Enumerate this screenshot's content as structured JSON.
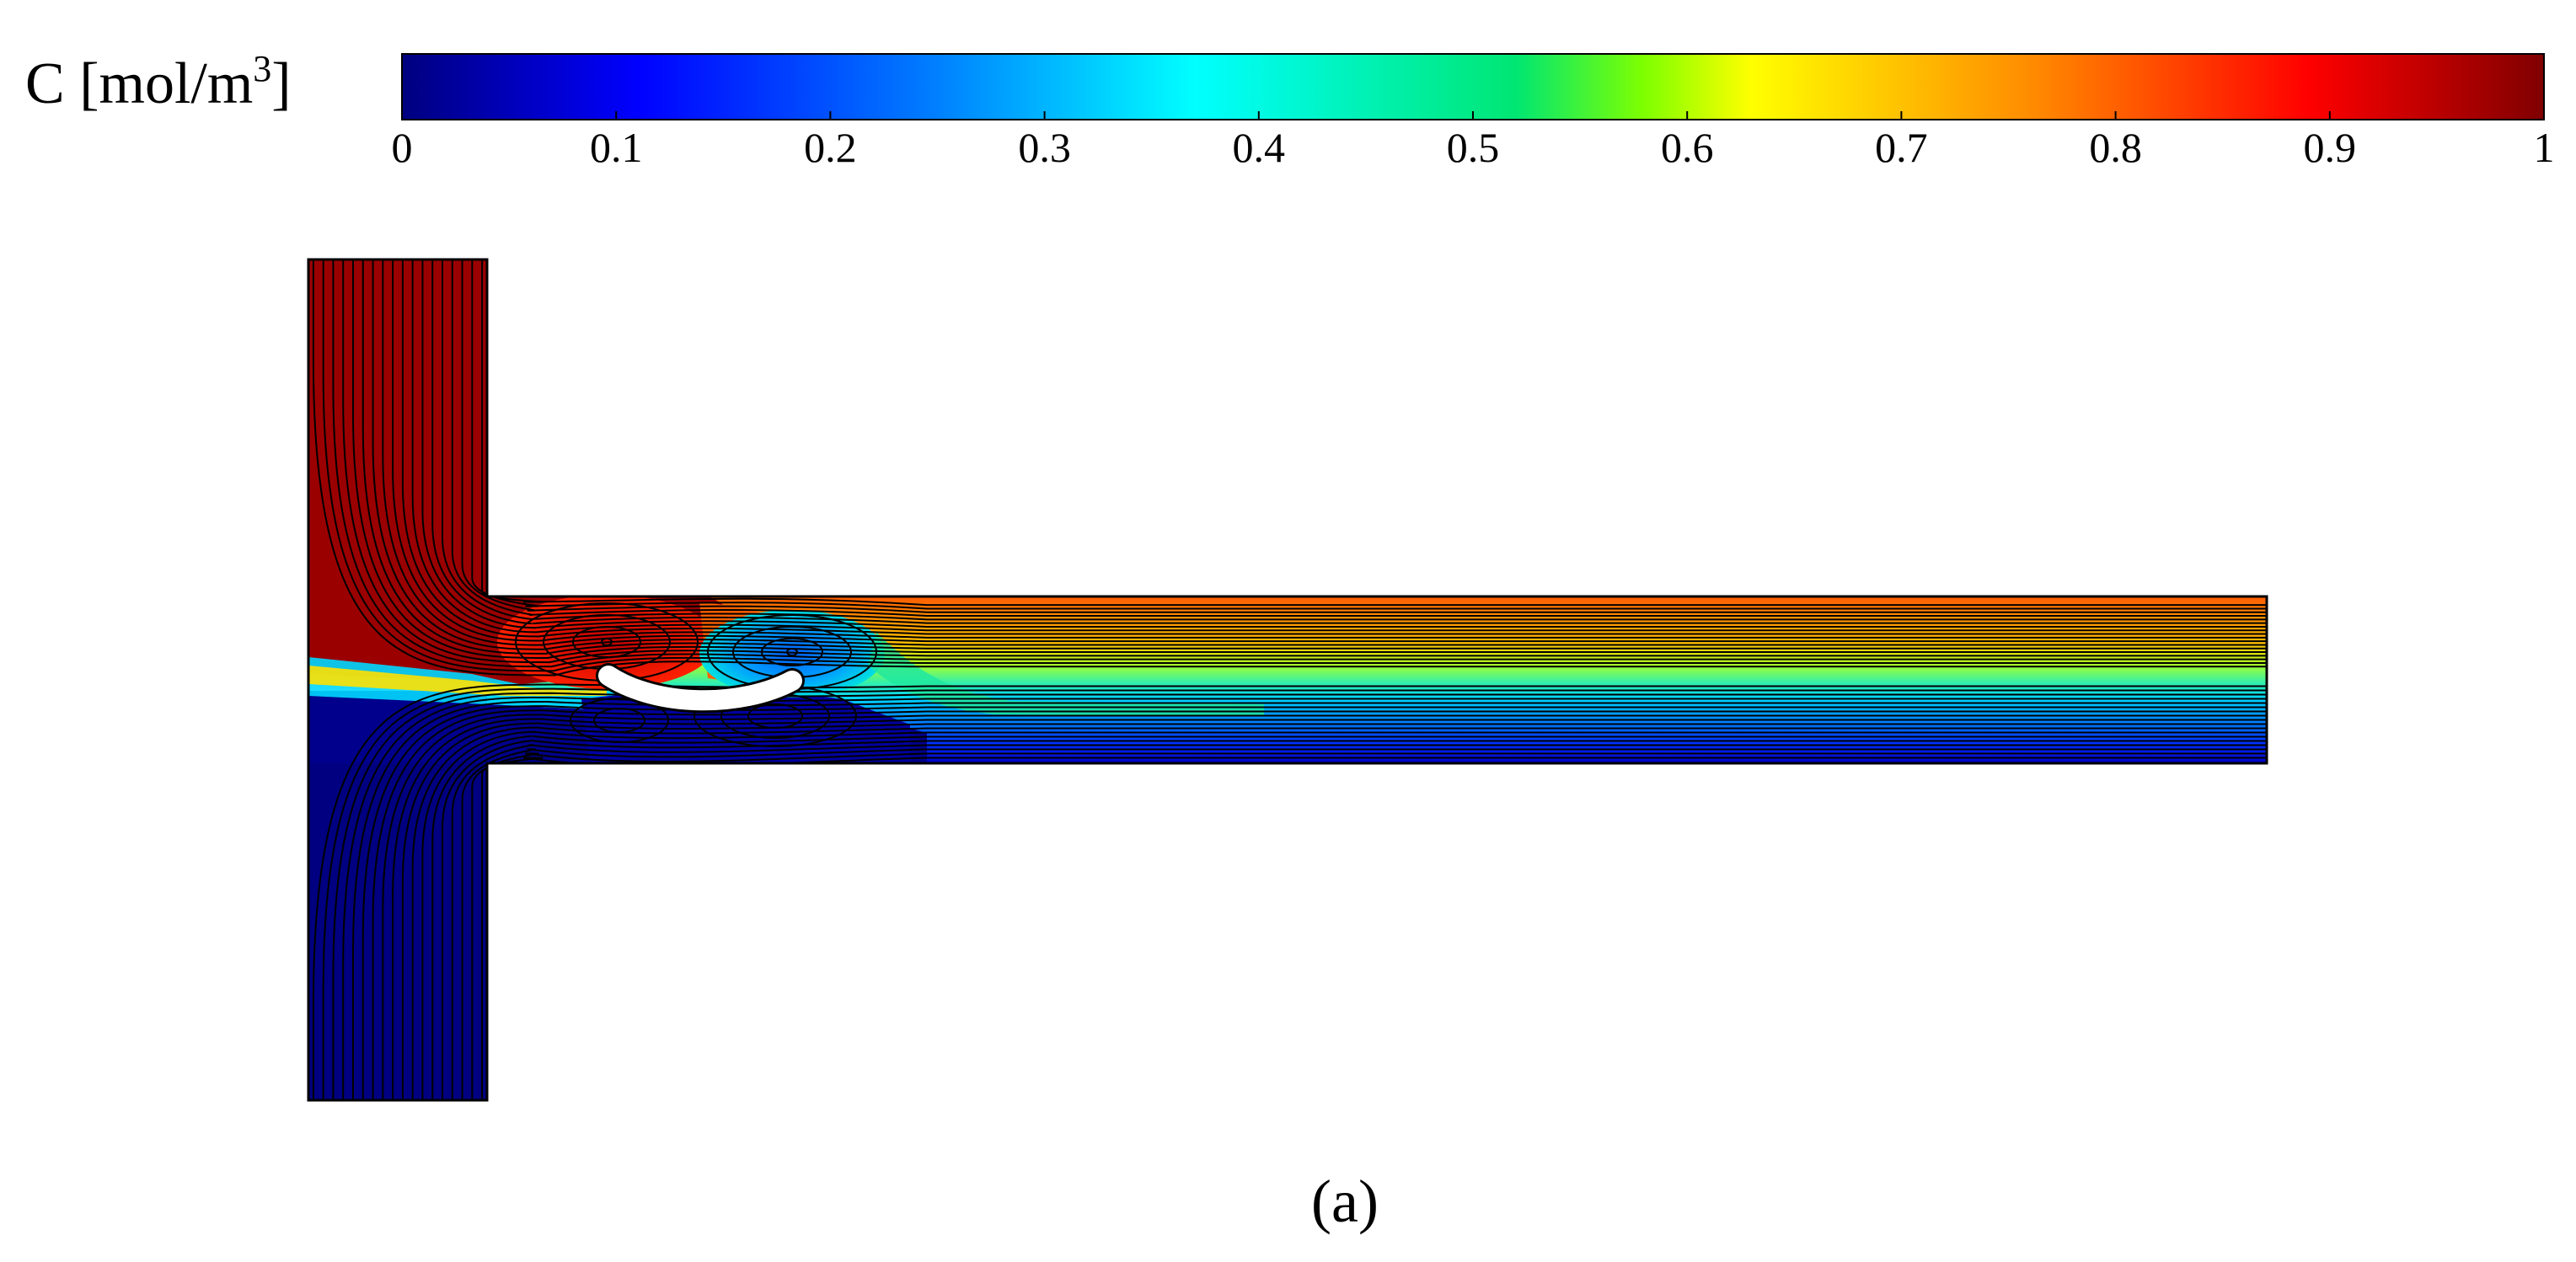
{
  "colorbar": {
    "label_main": "C [mol/m",
    "label_sup": "3",
    "label_close": "]",
    "range": [
      0,
      1
    ],
    "ticks": [
      "0",
      "0.1",
      "0.2",
      "0.3",
      "0.4",
      "0.5",
      "0.6",
      "0.7",
      "0.8",
      "0.9",
      "1"
    ],
    "colormap": [
      "#00007f",
      "#0000ff",
      "#007fff",
      "#00ffff",
      "#00e673",
      "#7fff00",
      "#ffff00",
      "#ff7f00",
      "#ff0000",
      "#7f0000"
    ]
  },
  "domain": {
    "top_inlet_value": 1,
    "bottom_inlet_value": 0,
    "outlet_profile": {
      "top": 0.82,
      "bottom": 0.05
    }
  },
  "colors": {
    "high": "#9b0000",
    "low": "#000080",
    "streamline": "#000000",
    "baffle": "#ffffff"
  },
  "caption": "(a)"
}
